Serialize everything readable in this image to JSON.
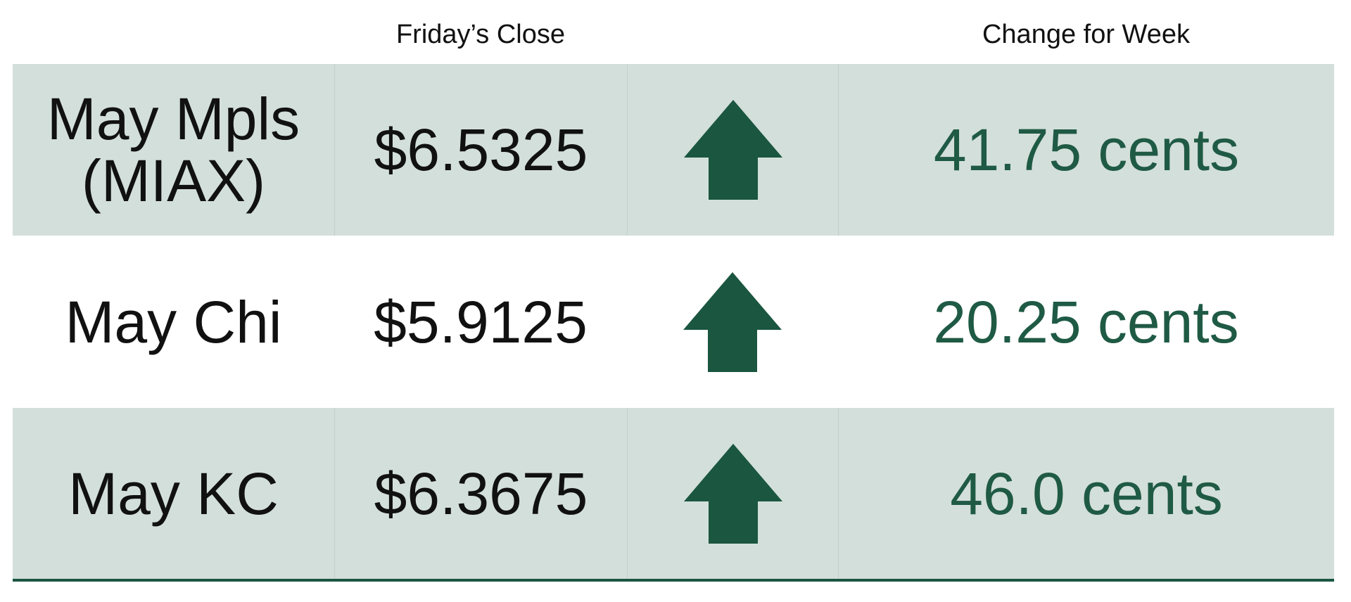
{
  "header": {
    "close": "Friday’s Close",
    "change": "Change for Week"
  },
  "rows": [
    {
      "label": [
        "May Mpls",
        "(MIAX)"
      ],
      "close": "$6.5325",
      "change": "41.75 cents"
    },
    {
      "label": [
        "May Chi"
      ],
      "close": "$5.9125",
      "change": "20.25 cents"
    },
    {
      "label": [
        "May KC"
      ],
      "close": "$6.3675",
      "change": "46.0 cents"
    }
  ]
}
